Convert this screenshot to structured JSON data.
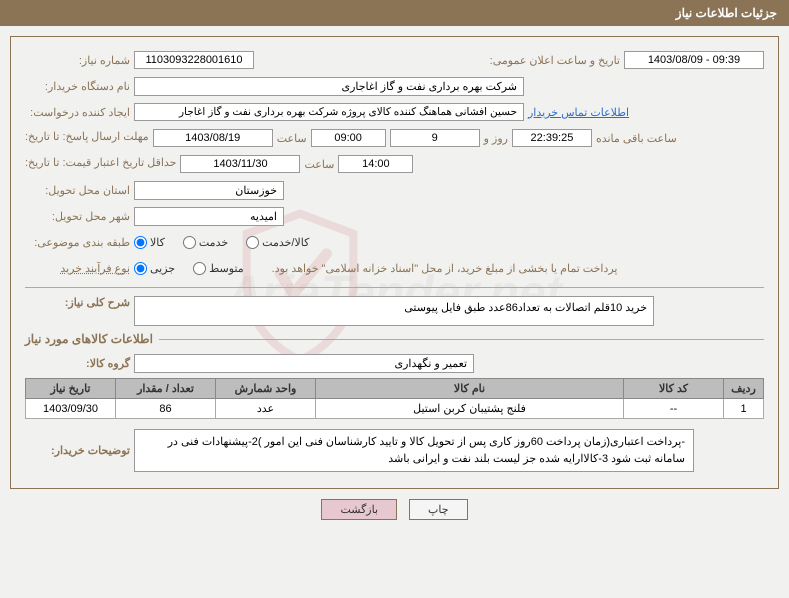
{
  "header": {
    "title": "جزئیات اطلاعات نیاز"
  },
  "watermark_text": "AriaTender.net",
  "fields": {
    "need_no_label": "شماره نیاز:",
    "need_no": "1103093228001610",
    "announce_label": "تاریخ و ساعت اعلان عمومی:",
    "announce_val": "1403/08/09 - 09:39",
    "buyer_label": "نام دستگاه خریدار:",
    "buyer_val": "شرکت بهره برداری نفت و گاز اغاجاری",
    "requester_label": "ایجاد کننده درخواست:",
    "requester_val": "حسین افشانی هماهنگ کننده کالای پروژه شرکت بهره برداری نفت و گاز اغاجار",
    "contact_link": "اطلاعات تماس خریدار",
    "reply_label": "مهلت ارسال پاسخ: تا تاریخ:",
    "reply_date": "1403/08/19",
    "time_word": "ساعت",
    "reply_time": "09:00",
    "days_remaining": "9",
    "days_remaining_word": "روز و",
    "countdown": "22:39:25",
    "remaining_suffix": "ساعت باقی مانده",
    "validity_label": "حداقل تاریخ اعتبار قیمت: تا تاریخ:",
    "validity_date": "1403/11/30",
    "validity_time": "14:00",
    "province_label": "استان محل تحویل:",
    "province_val": "خوزستان",
    "city_label": "شهر محل تحویل:",
    "city_val": "امیدیه",
    "category_label": "طبقه بندی موضوعی:",
    "buy_process_label": "نوع فرآیند خرید",
    "buy_note": "پرداخت تمام یا بخشی از مبلغ خرید، از محل \"اسناد خزانه اسلامی\" خواهد بود.",
    "desc_label": "شرح کلی نیاز:",
    "desc_val": "خرید 10قلم اتصالات به تعداد86عدد طبق فایل پیوستی",
    "goods_info_title": "اطلاعات کالاهای مورد نیاز",
    "goods_group_label": "گروه کالا:",
    "goods_group_val": "تعمیر و نگهداری",
    "buyer_notes_label": "توضیحات خریدار:",
    "buyer_notes_val": "-پرداخت اعتباری(زمان پرداخت 60روز کاری پس از تحویل کالا و تایید کارشناسان فنی این امور )2-پیشنهادات فنی در سامانه ثبت شود 3-کالاارایه شده جز لیست بلند نفت و ایرانی باشد"
  },
  "radios": {
    "cat": [
      {
        "label": "کالا",
        "checked": true
      },
      {
        "label": "خدمت",
        "checked": false
      },
      {
        "label": "کالا/خدمت",
        "checked": false
      }
    ],
    "proc": [
      {
        "label": "جزیی",
        "checked": true
      },
      {
        "label": "متوسط",
        "checked": false
      }
    ]
  },
  "table": {
    "headers": {
      "row": "ردیف",
      "code": "کد کالا",
      "name": "نام کالا",
      "unit": "واحد شمارش",
      "qty": "تعداد / مقدار",
      "date": "تاریخ نیاز"
    },
    "rows": [
      {
        "idx": "1",
        "code": "--",
        "name": "فلنج پشتیبان کربن استیل",
        "unit": "عدد",
        "qty": "86",
        "date": "1403/09/30"
      }
    ]
  },
  "buttons": {
    "print": "چاپ",
    "back": "بازگشت"
  }
}
